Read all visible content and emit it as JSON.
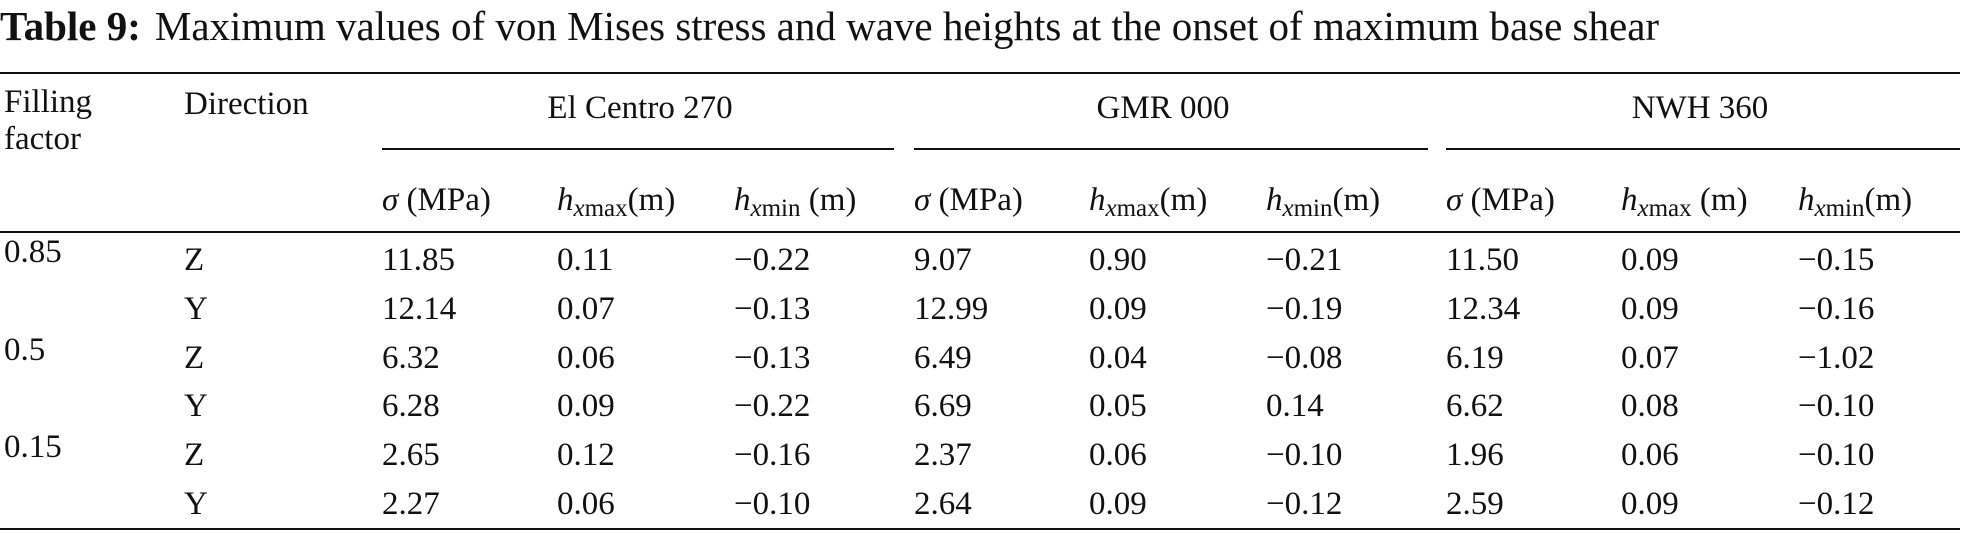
{
  "caption": {
    "label": "Table 9:",
    "text": "Maximum values of von Mises stress and wave heights at the onset of maximum base shear"
  },
  "header": {
    "filling_line1": "Filling",
    "filling_line2": "factor",
    "direction": "Direction",
    "groups": [
      "El Centro 270",
      "GMR 000",
      "NWH 360"
    ],
    "sigma_symbol": "σ",
    "sigma_unit": " (MPa)",
    "h_symbol": "h",
    "sub_x": "x",
    "sub_max": "max",
    "sub_min": "min",
    "unit_m_tight": "(m)",
    "unit_m_spaced": " (m)"
  },
  "rows": [
    {
      "factor": "0.85",
      "dir": "Z",
      "vals": [
        "11.85",
        "0.11",
        "−0.22",
        "9.07",
        "0.90",
        "−0.21",
        "11.50",
        "0.09",
        "−0.15"
      ]
    },
    {
      "factor": "",
      "dir": "Y",
      "vals": [
        "12.14",
        "0.07",
        "−0.13",
        "12.99",
        "0.09",
        "−0.19",
        "12.34",
        "0.09",
        "−0.16"
      ]
    },
    {
      "factor": "0.5",
      "dir": "Z",
      "vals": [
        "6.32",
        "0.06",
        "−0.13",
        "6.49",
        "0.04",
        "−0.08",
        "6.19",
        "0.07",
        "−1.02"
      ]
    },
    {
      "factor": "",
      "dir": "Y",
      "vals": [
        "6.28",
        "0.09",
        "−0.22",
        "6.69",
        "0.05",
        "0.14",
        "6.62",
        "0.08",
        "−0.10"
      ]
    },
    {
      "factor": "0.15",
      "dir": "Z",
      "vals": [
        "2.65",
        "0.12",
        "−0.16",
        "2.37",
        "0.06",
        "−0.10",
        "1.96",
        "0.06",
        "−0.10"
      ]
    },
    {
      "factor": "",
      "dir": "Y",
      "vals": [
        "2.27",
        "0.06",
        "−0.10",
        "2.64",
        "0.09",
        "−0.12",
        "2.59",
        "0.09",
        "−0.12"
      ]
    }
  ]
}
